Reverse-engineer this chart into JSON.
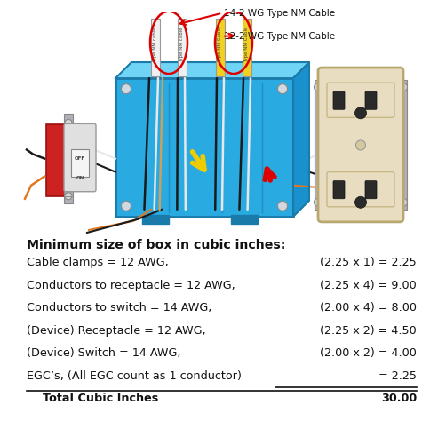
{
  "bg_color": "#ffffff",
  "title": "Minimum size of box in cubic inches:",
  "rows": [
    {
      "left": "Cable clamps = 12 AWG,",
      "right": "(2.25 x 1) = 2.25",
      "underline": false,
      "bold": false
    },
    {
      "left": "Conductors to receptacle = 12 AWG,",
      "right": "(2.25 x 4) = 9.00",
      "underline": false,
      "bold": false
    },
    {
      "left": "Conductors to switch = 14 AWG,",
      "right": "(2.00 x 4) = 8.00",
      "underline": false,
      "bold": false
    },
    {
      "left": "(Device) Receptacle = 12 AWG,",
      "right": "(2.25 x 2) = 4.50",
      "underline": false,
      "bold": false
    },
    {
      "left": "(Device) Switch = 14 AWG,",
      "right": "(2.00 x 2) = 4.00",
      "underline": false,
      "bold": false
    },
    {
      "left": "EGC’s, (All EGC count as 1 conductor)",
      "right": "= 2.25",
      "underline": true,
      "bold": false
    },
    {
      "left": "    Total Cubic Inches",
      "right": "30.00",
      "underline": false,
      "bold": true
    }
  ],
  "cable_label_1": "14-2 WG Type NM Cable",
  "cable_label_2": "12-2 WG Type NM Cable",
  "box_blue": "#29abe2",
  "box_blue_dark": "#1a7aaa",
  "box_blue_light": "#6fd4f5",
  "cable_white": "#f0f0f0",
  "cable_yellow": "#f0d020",
  "wire_black": "#1a1a1a",
  "wire_white": "#e8e8e8",
  "wire_bare": "#c8a060",
  "wire_orange": "#e07820",
  "red_arrow": "#dd0000",
  "yellow_arrow": "#eecc00",
  "switch_gray": "#cccccc",
  "switch_metal": "#aaaaaa",
  "red_box": "#cc2222",
  "receptacle_beige": "#e8ddc0",
  "receptacle_edge": "#b8a870",
  "slot_dark": "#2a2a2a",
  "bracket_gray": "#b0b0b8"
}
